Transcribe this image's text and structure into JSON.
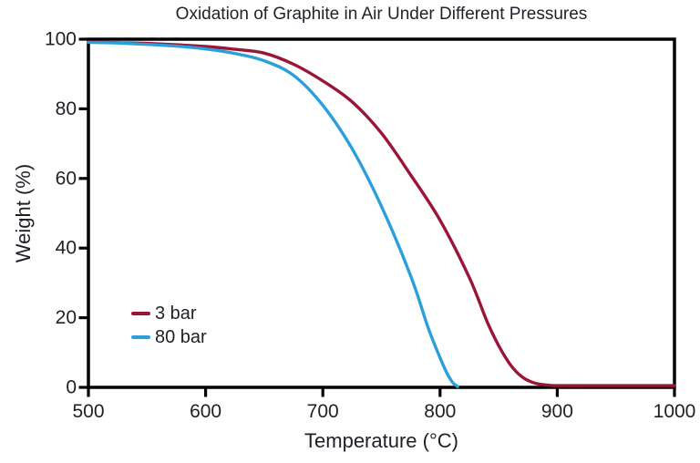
{
  "chart_data": {
    "type": "line",
    "title": "Oxidation of Graphite in Air Under Different Pressures",
    "xlabel": "Temperature (°C)",
    "ylabel": "Weight (%)",
    "xlim": [
      500,
      1000
    ],
    "ylim": [
      0,
      100
    ],
    "xticks": [
      500,
      600,
      700,
      800,
      900,
      1000
    ],
    "yticks": [
      0,
      20,
      40,
      60,
      80,
      100
    ],
    "grid": false,
    "legend_position": "inside-lower-left",
    "axis_color": "#000000",
    "text_color": "#211e26",
    "background_color": "#ffffff",
    "series": [
      {
        "name": "3 bar",
        "color": "#9A1638",
        "x": [
          500,
          525,
          550,
          575,
          600,
          625,
          650,
          675,
          700,
          725,
          750,
          775,
          800,
          825,
          840,
          850,
          860,
          870,
          880,
          890,
          900,
          925,
          950,
          975,
          1000
        ],
        "y": [
          99.2,
          99.0,
          98.8,
          98.4,
          97.9,
          97.1,
          96.0,
          92.8,
          88.0,
          82.0,
          73.0,
          61.0,
          48.0,
          31.5,
          19.0,
          12.0,
          6.5,
          3.0,
          1.3,
          0.7,
          0.5,
          0.5,
          0.5,
          0.5,
          0.5
        ]
      },
      {
        "name": "80 bar",
        "color": "#2B9FDB",
        "x": [
          500,
          525,
          550,
          575,
          600,
          625,
          650,
          675,
          700,
          725,
          750,
          775,
          790,
          800,
          806,
          811,
          815
        ],
        "y": [
          99.1,
          98.9,
          98.5,
          98.0,
          97.2,
          95.9,
          93.8,
          89.6,
          81.0,
          68.5,
          52.0,
          32.0,
          17.0,
          8.5,
          4.0,
          1.3,
          0.2
        ]
      }
    ]
  }
}
